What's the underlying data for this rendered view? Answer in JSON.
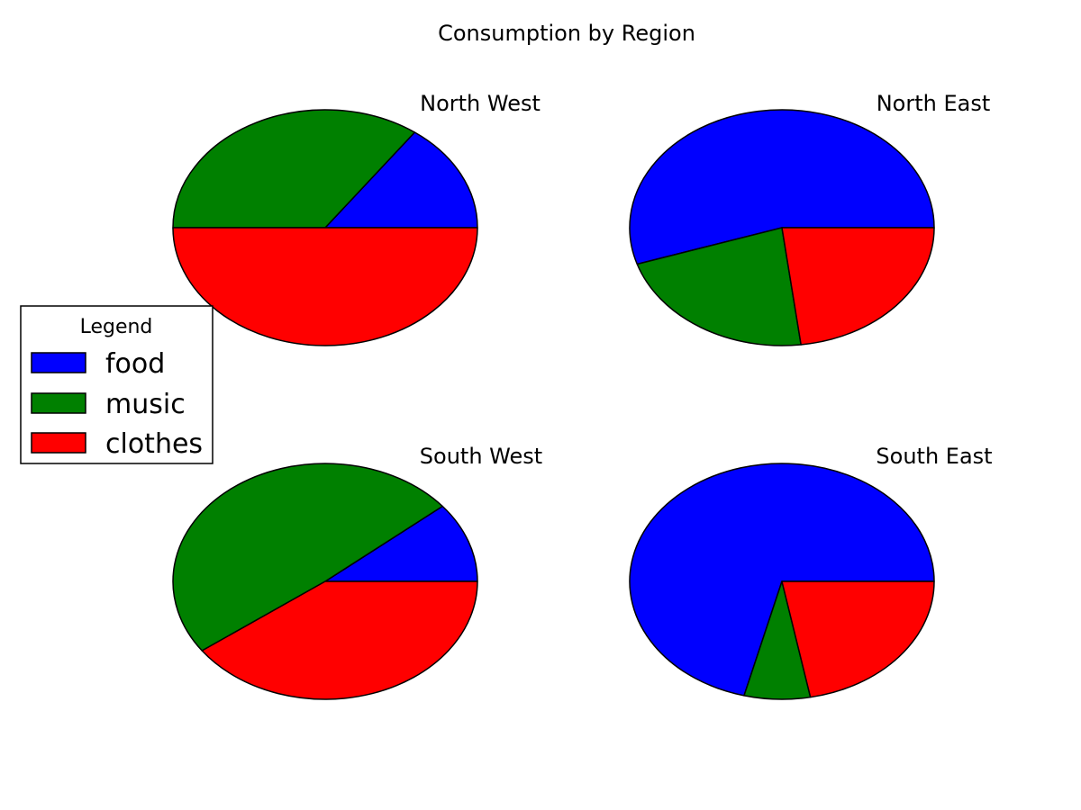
{
  "chart_data": {
    "type": "pie",
    "title": "Consumption by Region",
    "categories": [
      "food",
      "music",
      "clothes"
    ],
    "colors": [
      "#0000ff",
      "#008000",
      "#ff0000"
    ],
    "legend": {
      "title": "Legend",
      "placement": "center-left",
      "entries": [
        "food",
        "music",
        "clothes"
      ]
    },
    "pies": [
      {
        "name": "North West",
        "values": [
          15,
          35,
          50
        ]
      },
      {
        "name": "North East",
        "values": [
          55,
          22,
          23
        ]
      },
      {
        "name": "South West",
        "values": [
          11,
          49,
          40
        ]
      },
      {
        "name": "South East",
        "values": [
          71,
          7,
          22
        ]
      }
    ]
  }
}
